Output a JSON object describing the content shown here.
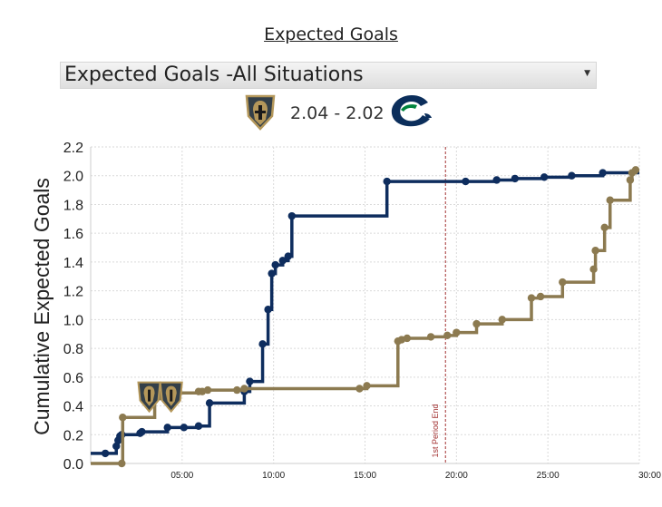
{
  "header": {
    "title": "Expected Goals",
    "select": {
      "selected": "Expected Goals -All Situations"
    }
  },
  "score": {
    "home_team_icon": "vegas-golden-knights-logo",
    "away_team_icon": "vancouver-canucks-logo",
    "text": "2.04 - 2.02"
  },
  "colors": {
    "vgk": "#8c7a50",
    "van": "#0e2d5e",
    "period_line": "#a33333"
  },
  "chart_data": {
    "type": "line",
    "step": true,
    "title": "",
    "xlabel": "",
    "ylabel": "Cumulative Expected Goals",
    "xlim": [
      0,
      30
    ],
    "ylim": [
      0,
      2.2
    ],
    "x_ticks": [
      5,
      10,
      15,
      20,
      25,
      30
    ],
    "x_tick_labels": [
      "05:00",
      "10:00",
      "15:00",
      "20:00",
      "25:00",
      "30:00"
    ],
    "y_ticks": [
      0.0,
      0.2,
      0.4,
      0.6,
      0.8,
      1.0,
      1.2,
      1.4,
      1.6,
      1.8,
      2.0,
      2.2
    ],
    "y_tick_labels": [
      "0.0",
      "0.2",
      "0.4",
      "0.6",
      "0.8",
      "1.0",
      "1.2",
      "1.4",
      "1.6",
      "1.8",
      "2.0",
      "2.2"
    ],
    "grid": true,
    "annotation": {
      "label": "1st Period End",
      "x": 19.4
    },
    "goal_markers": [
      {
        "team": "vgk",
        "x": 3.2,
        "y": 0.45
      },
      {
        "team": "vgk",
        "x": 4.4,
        "y": 0.45
      }
    ],
    "series": [
      {
        "team": "van",
        "x": [
          0.0,
          0.8,
          1.4,
          1.5,
          1.6,
          1.7,
          2.7,
          2.8,
          4.2,
          5.1,
          5.9,
          6.5,
          8.4,
          8.7,
          9.4,
          9.7,
          9.9,
          10.1,
          10.5,
          10.8,
          11.0,
          16.2,
          20.5,
          22.2,
          23.2,
          24.8,
          26.3,
          28.0,
          30.0
        ],
        "y": [
          0.07,
          0.07,
          0.12,
          0.16,
          0.19,
          0.2,
          0.21,
          0.22,
          0.25,
          0.25,
          0.26,
          0.42,
          0.5,
          0.57,
          0.83,
          1.07,
          1.32,
          1.38,
          1.41,
          1.44,
          1.72,
          1.96,
          1.96,
          1.97,
          1.98,
          1.99,
          2.0,
          2.02,
          2.02
        ]
      },
      {
        "team": "vgk",
        "x": [
          0.0,
          1.7,
          1.75,
          3.5,
          3.8,
          4.1,
          5.9,
          6.1,
          6.4,
          8.0,
          8.4,
          14.7,
          15.1,
          16.8,
          17.0,
          17.3,
          18.6,
          19.5,
          20.0,
          21.1,
          22.5,
          24.1,
          24.6,
          25.8,
          27.5,
          27.6,
          28.1,
          28.4,
          29.5,
          29.6,
          29.8
        ],
        "y": [
          0.0,
          0.0,
          0.32,
          0.45,
          0.48,
          0.49,
          0.5,
          0.5,
          0.51,
          0.51,
          0.52,
          0.52,
          0.54,
          0.85,
          0.86,
          0.87,
          0.88,
          0.89,
          0.91,
          0.97,
          1.0,
          1.15,
          1.16,
          1.26,
          1.35,
          1.48,
          1.64,
          1.83,
          1.97,
          2.02,
          2.04
        ]
      }
    ]
  }
}
